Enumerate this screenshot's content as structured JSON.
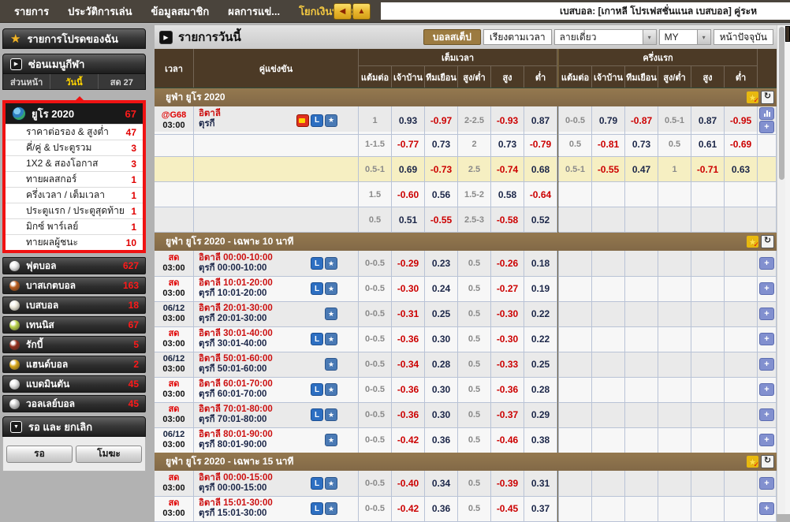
{
  "colors": {
    "accent_gold": "#f2c741",
    "negative_red": "#cc0000",
    "positive_navy": "#1c2749",
    "table_header_brown": "#4c3a26",
    "section_band_brown": "#8a6e49",
    "highlight_yellow": "#f6efc2"
  },
  "topbar": {
    "menu": [
      {
        "label": "รายการ"
      },
      {
        "label": "ประวัติการเล่น"
      },
      {
        "label": "ข้อมูลสมาชิก"
      },
      {
        "label": "ผลการแข่..."
      },
      {
        "label": "โยกเงินทั้งหมด",
        "accent": true
      }
    ],
    "back_arrow": "◀",
    "up_arrow": "▲",
    "ticker": "เบสบอล: [เกาหลี โปรเฟสชั่นแนล เบสบอล] คู่ระห"
  },
  "sidebar": {
    "favorites_title": "รายการโปรดของฉัน",
    "hide_menu_title": "ซ่อนเมนูกีฬา",
    "tabs": [
      {
        "label": "ส่วนหน้า",
        "selected": false
      },
      {
        "label": "วันนี้",
        "selected": true
      },
      {
        "label": "สด 27",
        "selected": false
      }
    ],
    "highlighted_group": {
      "title": "ยูโร 2020",
      "count": "67",
      "items": [
        {
          "label": "ราคาต่อรอง & สูงต่ำ",
          "count": "47"
        },
        {
          "label": "คี่/คู่ & ประตูรวม",
          "count": "3"
        },
        {
          "label": "1X2 & สองโอกาส",
          "count": "3"
        },
        {
          "label": "ทายผลสกอร์",
          "count": "1"
        },
        {
          "label": "ครึ่งเวลา / เต็มเวลา",
          "count": "1"
        },
        {
          "label": "ประตูแรก / ประตูสุดท้าย",
          "count": "1"
        },
        {
          "label": "มิกซ์ พาร์เลย์",
          "count": "1"
        },
        {
          "label": "ทายผลผู้ชนะ",
          "count": "10"
        }
      ]
    },
    "sports": [
      {
        "label": "ฟุตบอล",
        "count": "627",
        "icon": "football-icon",
        "color": "#e8e8e8"
      },
      {
        "label": "บาสเกตบอล",
        "count": "163",
        "icon": "basketball-icon",
        "color": "#b85c1e"
      },
      {
        "label": "เบสบอล",
        "count": "18",
        "icon": "baseball-icon",
        "color": "#ece8da"
      },
      {
        "label": "เทนนิส",
        "count": "67",
        "icon": "tennis-icon",
        "color": "#b9d24b"
      },
      {
        "label": "รักบี้",
        "count": "5",
        "icon": "rugby-icon",
        "color": "#93301f"
      },
      {
        "label": "แฮนด์บอล",
        "count": "2",
        "icon": "handball-icon",
        "color": "#d6a61a"
      },
      {
        "label": "แบดมินตัน",
        "count": "45",
        "icon": "badminton-icon",
        "color": "#e3e3e3"
      },
      {
        "label": "วอลเลย์บอล",
        "count": "45",
        "icon": "volleyball-icon",
        "color": "#c9c9c9"
      }
    ],
    "pending_title": "รอ และ ยกเลิก",
    "pending_buttons": [
      {
        "label": "รอ"
      },
      {
        "label": "โมฆะ"
      }
    ]
  },
  "main": {
    "title": "รายการวันนี้",
    "toolbar": {
      "step_button": "บอลสเต็ป",
      "sort_button": "เรียงตามเวลา",
      "view_select": "ลายเดี่ยว",
      "odds_select": "MY",
      "current_page_button": "หน้าปัจจุบัน"
    },
    "table_header": {
      "time": "เวลา",
      "match": "คู่แข่งขัน",
      "full_time": "เต็มเวลา",
      "first_half": "ครึ่งแรก",
      "subcols": [
        "แต้มต่อ",
        "เจ้าบ้าน",
        "ทีมเยือน",
        "สูง/ต่ำ",
        "สูง",
        "ต่ำ"
      ]
    },
    "sections": [
      {
        "title": "ยูฟ่า ยูโร 2020",
        "rows": [
          {
            "time": [
              "@G68",
              "03:00"
            ],
            "teams": [
              "อิตาลี",
              "ตุรกี"
            ],
            "icons": [
              "tv",
              "live-l",
              "star-plus"
            ],
            "ft": [
              "1",
              "0.93",
              "-0.97",
              "2-2.5",
              "-0.93",
              "0.87"
            ],
            "hh": [
              "0-0.5",
              "0.79",
              "-0.87",
              "0.5-1",
              "0.87",
              "-0.95"
            ],
            "actions": [
              "chart",
              "plus"
            ]
          },
          {
            "ft": [
              "1-1.5",
              "-0.77",
              "0.73",
              "2",
              "0.73",
              "-0.79"
            ],
            "hh": [
              "0.5",
              "-0.81",
              "0.73",
              "0.5",
              "0.61",
              "-0.69"
            ]
          },
          {
            "highlight": true,
            "ft": [
              "0.5-1",
              "0.69",
              "-0.73",
              "2.5",
              "-0.74",
              "0.68"
            ],
            "hh": [
              "0.5-1",
              "-0.55",
              "0.47",
              "1",
              "-0.71",
              "0.63"
            ]
          },
          {
            "ft": [
              "1.5",
              "-0.60",
              "0.56",
              "1.5-2",
              "0.58",
              "-0.64"
            ]
          },
          {
            "ft": [
              "0.5",
              "0.51",
              "-0.55",
              "2.5-3",
              "-0.58",
              "0.52"
            ]
          }
        ]
      },
      {
        "title": "ยูฟ่า ยูโร 2020 - เฉพาะ 10 นาที",
        "rows": [
          {
            "time": [
              "สด",
              "03:00"
            ],
            "teams": [
              "อิตาลี 00:00-10:00",
              "ตุรกี 00:00-10:00"
            ],
            "icons": [
              "live-l",
              "star-plus"
            ],
            "ft": [
              "0-0.5",
              "-0.29",
              "0.23",
              "0.5",
              "-0.26",
              "0.18"
            ],
            "actions": [
              "plus"
            ]
          },
          {
            "time": [
              "สด",
              "03:00"
            ],
            "teams": [
              "อิตาลี 10:01-20:00",
              "ตุรกี 10:01-20:00"
            ],
            "icons": [
              "live-l",
              "star-plus"
            ],
            "ft": [
              "0-0.5",
              "-0.30",
              "0.24",
              "0.5",
              "-0.27",
              "0.19"
            ],
            "actions": [
              "plus"
            ]
          },
          {
            "time": [
              "06/12",
              "03:00"
            ],
            "teams": [
              "อิตาลี 20:01-30:00",
              "ตุรกี 20:01-30:00"
            ],
            "icons": [
              "star-plus"
            ],
            "ft": [
              "0-0.5",
              "-0.31",
              "0.25",
              "0.5",
              "-0.30",
              "0.22"
            ],
            "actions": [
              "plus"
            ]
          },
          {
            "time": [
              "สด",
              "03:00"
            ],
            "teams": [
              "อิตาลี 30:01-40:00",
              "ตุรกี 30:01-40:00"
            ],
            "icons": [
              "live-l",
              "star-plus"
            ],
            "ft": [
              "0-0.5",
              "-0.36",
              "0.30",
              "0.5",
              "-0.30",
              "0.22"
            ],
            "actions": [
              "plus"
            ]
          },
          {
            "time": [
              "06/12",
              "03:00"
            ],
            "teams": [
              "อิตาลี 50:01-60:00",
              "ตุรกี 50:01-60:00"
            ],
            "icons": [
              "star-plus"
            ],
            "ft": [
              "0-0.5",
              "-0.34",
              "0.28",
              "0.5",
              "-0.33",
              "0.25"
            ],
            "actions": [
              "plus"
            ]
          },
          {
            "time": [
              "สด",
              "03:00"
            ],
            "teams": [
              "อิตาลี 60:01-70:00",
              "ตุรกี 60:01-70:00"
            ],
            "icons": [
              "live-l",
              "star-plus"
            ],
            "ft": [
              "0-0.5",
              "-0.36",
              "0.30",
              "0.5",
              "-0.36",
              "0.28"
            ],
            "actions": [
              "plus"
            ]
          },
          {
            "time": [
              "สด",
              "03:00"
            ],
            "teams": [
              "อิตาลี 70:01-80:00",
              "ตุรกี 70:01-80:00"
            ],
            "icons": [
              "live-l",
              "star-plus"
            ],
            "ft": [
              "0-0.5",
              "-0.36",
              "0.30",
              "0.5",
              "-0.37",
              "0.29"
            ],
            "actions": [
              "plus"
            ]
          },
          {
            "time": [
              "06/12",
              "03:00"
            ],
            "teams": [
              "อิตาลี 80:01-90:00",
              "ตุรกี 80:01-90:00"
            ],
            "icons": [
              "star-plus"
            ],
            "ft": [
              "0-0.5",
              "-0.42",
              "0.36",
              "0.5",
              "-0.46",
              "0.38"
            ],
            "actions": [
              "plus"
            ]
          }
        ]
      },
      {
        "title": "ยูฟ่า ยูโร 2020 - เฉพาะ 15 นาที",
        "rows": [
          {
            "time": [
              "สด",
              "03:00"
            ],
            "teams": [
              "อิตาลี 00:00-15:00",
              "ตุรกี 00:00-15:00"
            ],
            "icons": [
              "live-l",
              "star-plus"
            ],
            "ft": [
              "0-0.5",
              "-0.40",
              "0.34",
              "0.5",
              "-0.39",
              "0.31"
            ],
            "actions": [
              "plus"
            ]
          },
          {
            "time": [
              "สด",
              "03:00"
            ],
            "teams": [
              "อิตาลี 15:01-30:00",
              "ตุรกี 15:01-30:00"
            ],
            "icons": [
              "live-l",
              "star-plus"
            ],
            "ft": [
              "0-0.5",
              "-0.42",
              "0.36",
              "0.5",
              "-0.45",
              "0.37"
            ],
            "actions": [
              "plus"
            ]
          }
        ]
      }
    ]
  }
}
